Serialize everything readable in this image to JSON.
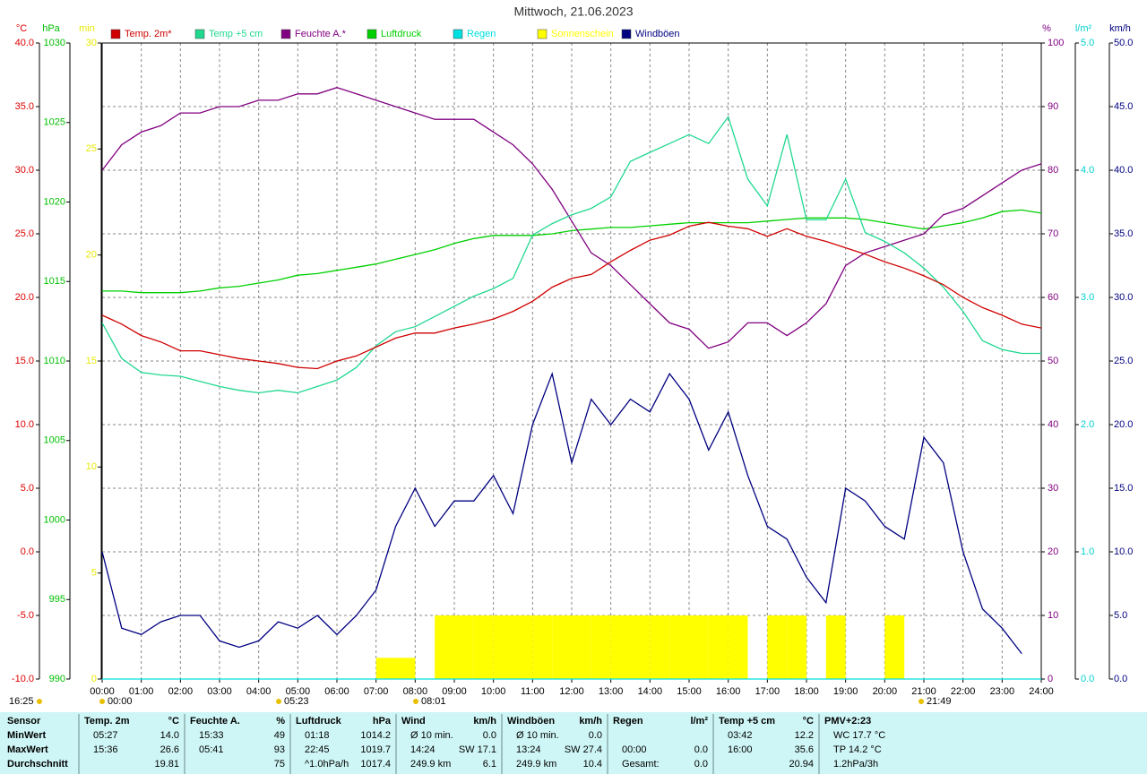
{
  "chart_data": {
    "type": "line",
    "title": "Mittwoch, 21.06.2023",
    "xlim": [
      0,
      24
    ],
    "xticks": [
      {
        "value": 0,
        "label": "00:00"
      },
      {
        "value": 1,
        "label": "01:00"
      },
      {
        "value": 2,
        "label": "02:00"
      },
      {
        "value": 3,
        "label": "03:00"
      },
      {
        "value": 4,
        "label": "04:00"
      },
      {
        "value": 5,
        "label": "05:00"
      },
      {
        "value": 6,
        "label": "06:00"
      },
      {
        "value": 7,
        "label": "07:00"
      },
      {
        "value": 8,
        "label": "08:00"
      },
      {
        "value": 9,
        "label": "09:00"
      },
      {
        "value": 10,
        "label": "10:00"
      },
      {
        "value": 11,
        "label": "11:00"
      },
      {
        "value": 12,
        "label": "12:00"
      },
      {
        "value": 13,
        "label": "13:00"
      },
      {
        "value": 14,
        "label": "14:00"
      },
      {
        "value": 15,
        "label": "15:00"
      },
      {
        "value": 16,
        "label": "16:00"
      },
      {
        "value": 17,
        "label": "17:00"
      },
      {
        "value": 18,
        "label": "18:00"
      },
      {
        "value": 19,
        "label": "19:00"
      },
      {
        "value": 20,
        "label": "20:00"
      },
      {
        "value": 21,
        "label": "21:00"
      },
      {
        "value": 22,
        "label": "22:00"
      },
      {
        "value": 23,
        "label": "23:00"
      },
      {
        "value": 24,
        "label": "24:00"
      }
    ],
    "grid": true,
    "axes": [
      {
        "unit": "°C",
        "color": "#e00000",
        "lim": [
          -10,
          40
        ],
        "ticks": [
          {
            "value": -10,
            "label": "-10.0"
          },
          {
            "value": -5,
            "label": "-5.0"
          },
          {
            "value": 0,
            "label": "0.0"
          },
          {
            "value": 5,
            "label": "5.0"
          },
          {
            "value": 10,
            "label": "10.0"
          },
          {
            "value": 15,
            "label": "15.0"
          },
          {
            "value": 20,
            "label": "20.0"
          },
          {
            "value": 25,
            "label": "25.0"
          },
          {
            "value": 30,
            "label": "30.0"
          },
          {
            "value": 35,
            "label": "35.0"
          },
          {
            "value": 40,
            "label": "40.0"
          }
        ]
      },
      {
        "unit": "hPa",
        "color": "#00c000",
        "lim": [
          990,
          1030
        ],
        "ticks": [
          990,
          995,
          1000,
          1005,
          1010,
          1015,
          1020,
          1025,
          1030
        ]
      },
      {
        "unit": "min",
        "color": "#e8e800",
        "lim": [
          0,
          30
        ],
        "ticks": [
          0,
          5,
          10,
          15,
          20,
          25,
          30
        ]
      },
      {
        "unit": "%",
        "color": "#800080",
        "lim": [
          0,
          100
        ],
        "ticks": [
          0,
          10,
          20,
          30,
          40,
          50,
          60,
          70,
          80,
          90,
          100
        ]
      },
      {
        "unit": "l/m²",
        "color": "#00d0d0",
        "lim": [
          0,
          5
        ],
        "ticks": [
          {
            "value": 0,
            "label": "0.0"
          },
          {
            "value": 1,
            "label": "1.0"
          },
          {
            "value": 2,
            "label": "2.0"
          },
          {
            "value": 3,
            "label": "3.0"
          },
          {
            "value": 4,
            "label": "4.0"
          },
          {
            "value": 5,
            "label": "5.0"
          }
        ]
      },
      {
        "unit": "km/h",
        "color": "#000080",
        "lim": [
          0,
          50
        ],
        "ticks": [
          {
            "value": 0,
            "label": "0.0"
          },
          {
            "value": 5,
            "label": "5.0"
          },
          {
            "value": 10,
            "label": "10.0"
          },
          {
            "value": 15,
            "label": "15.0"
          },
          {
            "value": 20,
            "label": "20.0"
          },
          {
            "value": 25,
            "label": "25.0"
          },
          {
            "value": 30,
            "label": "30.0"
          },
          {
            "value": 35,
            "label": "35.0"
          },
          {
            "value": 40,
            "label": "40.0"
          },
          {
            "value": 45,
            "label": "45.0"
          },
          {
            "value": 50,
            "label": "50.0"
          }
        ]
      }
    ],
    "x": [
      0,
      0.5,
      1,
      1.5,
      2,
      2.5,
      3,
      3.5,
      4,
      4.5,
      5,
      5.5,
      6,
      6.5,
      7,
      7.5,
      8,
      8.5,
      9,
      9.5,
      10,
      10.5,
      11,
      11.5,
      12,
      12.5,
      13,
      13.5,
      14,
      14.5,
      15,
      15.5,
      16,
      16.5,
      17,
      17.5,
      18,
      18.5,
      19,
      19.5,
      20,
      20.5,
      21,
      21.5,
      22,
      22.5,
      23,
      23.5,
      24
    ],
    "series": [
      {
        "name": "Temp. 2m*",
        "color": "#d00000",
        "axis": 0,
        "type": "line",
        "values": [
          18.6,
          17.9,
          17.0,
          16.5,
          15.8,
          15.8,
          15.5,
          15.2,
          15.0,
          14.8,
          14.5,
          14.4,
          15.0,
          15.4,
          16.1,
          16.8,
          17.2,
          17.2,
          17.6,
          17.9,
          18.3,
          18.9,
          19.7,
          20.8,
          21.5,
          21.8,
          22.8,
          23.7,
          24.5,
          24.9,
          25.6,
          25.9,
          25.6,
          25.4,
          24.8,
          25.4,
          24.8,
          24.4,
          23.9,
          23.4,
          22.8,
          22.3,
          21.7,
          21.0,
          20.0,
          19.2,
          18.6,
          17.9,
          17.6
        ]
      },
      {
        "name": "Temp +5 cm",
        "color": "#20d890",
        "axis": 0,
        "type": "line",
        "values": [
          18.0,
          15.2,
          14.1,
          13.9,
          13.8,
          13.4,
          13.0,
          12.7,
          12.5,
          12.7,
          12.5,
          13.0,
          13.5,
          14.5,
          16.2,
          17.3,
          17.7,
          18.5,
          19.3,
          20.1,
          20.7,
          21.5,
          24.9,
          25.8,
          26.5,
          27.0,
          27.9,
          30.7,
          31.4,
          32.1,
          32.8,
          32.1,
          34.2,
          29.3,
          27.2,
          32.8,
          26.1,
          26.1,
          29.3,
          25.1,
          24.4,
          23.5,
          22.3,
          20.8,
          18.9,
          16.6,
          15.9,
          15.6,
          15.6
        ]
      },
      {
        "name": "Feuchte A.*",
        "color": "#800080",
        "axis": 3,
        "type": "line",
        "values": [
          80,
          84,
          86,
          87,
          89,
          89,
          90,
          90,
          91,
          91,
          92,
          92,
          93,
          92,
          91,
          90,
          89,
          88,
          88,
          88,
          86,
          84,
          81,
          77,
          72,
          67,
          65,
          62,
          59,
          56,
          55,
          52,
          53,
          56,
          56,
          54,
          56,
          59,
          65,
          67,
          68,
          69,
          70,
          73,
          74,
          76,
          78,
          80,
          81
        ]
      },
      {
        "name": "Luftdruck",
        "color": "#00d000",
        "axis": 1,
        "type": "line",
        "values": [
          1014.4,
          1014.4,
          1014.3,
          1014.3,
          1014.3,
          1014.4,
          1014.6,
          1014.7,
          1014.9,
          1015.1,
          1015.4,
          1015.5,
          1015.7,
          1015.9,
          1016.1,
          1016.4,
          1016.7,
          1017.0,
          1017.4,
          1017.7,
          1017.9,
          1017.9,
          1017.9,
          1018.0,
          1018.2,
          1018.3,
          1018.4,
          1018.4,
          1018.5,
          1018.6,
          1018.7,
          1018.7,
          1018.7,
          1018.7,
          1018.8,
          1018.9,
          1019.0,
          1019.0,
          1019.0,
          1018.9,
          1018.7,
          1018.5,
          1018.3,
          1018.5,
          1018.7,
          1019.0,
          1019.4,
          1019.5,
          1019.3
        ]
      },
      {
        "name": "Regen",
        "color": "#00e0e0",
        "axis": 4,
        "type": "line",
        "values": [
          0,
          0,
          0,
          0,
          0,
          0,
          0,
          0,
          0,
          0,
          0,
          0,
          0,
          0,
          0,
          0,
          0,
          0,
          0,
          0,
          0,
          0,
          0,
          0,
          0,
          0,
          0,
          0,
          0,
          0,
          0,
          0,
          0,
          0,
          0,
          0,
          0,
          0,
          0,
          0,
          0,
          0,
          0,
          0,
          0,
          0,
          0,
          0,
          0
        ]
      },
      {
        "name": "Sonnenschein",
        "color": "#ffff00",
        "axis": 2,
        "type": "bar",
        "values": [
          0,
          0,
          0,
          0,
          0,
          0,
          0,
          0,
          0,
          0,
          0,
          0,
          0,
          0,
          1,
          1,
          0,
          3,
          3,
          3,
          3,
          3,
          3,
          3,
          3,
          3,
          3,
          3,
          3,
          3,
          3,
          3,
          3,
          0,
          3,
          3,
          0,
          3,
          0,
          0,
          3,
          0,
          0,
          0,
          0,
          0,
          0,
          0,
          0
        ]
      },
      {
        "name": "Windböen",
        "color": "#000080",
        "axis": 5,
        "type": "line",
        "values": [
          10,
          4,
          3.5,
          4.5,
          5,
          5,
          3,
          2.5,
          3,
          4.5,
          4,
          5,
          3.5,
          5,
          7,
          12,
          15,
          12,
          14,
          14,
          16,
          13,
          20,
          24,
          17,
          22,
          20,
          22,
          21,
          24,
          22,
          18,
          21,
          16,
          12,
          11,
          8,
          6,
          15,
          14,
          12,
          11,
          19,
          17,
          10,
          5.5,
          4,
          2,
          null
        ]
      }
    ],
    "annotations": [
      "16:25",
      "00:00",
      "05:23",
      "08:01",
      "21:49"
    ]
  },
  "table": {
    "first_header": "Sensor",
    "row_labels": [
      "MinWert",
      "MaxWert",
      "Durchschnitt"
    ],
    "sections": [
      {
        "name": "Temp. 2m",
        "unit": "°C",
        "rows": [
          [
            "05:27",
            "14.0"
          ],
          [
            "15:36",
            "26.6"
          ],
          [
            "19.81"
          ]
        ]
      },
      {
        "name": "Feuchte A.",
        "unit": "%",
        "rows": [
          [
            "15:33",
            "49"
          ],
          [
            "05:41",
            "93"
          ],
          [
            "75"
          ]
        ]
      },
      {
        "name": "Luftdruck",
        "unit": "hPa",
        "rows": [
          [
            "01:18",
            "1014.2"
          ],
          [
            "22:45",
            "1019.7"
          ],
          [
            "^1.0hPa/h",
            "1017.4"
          ]
        ]
      },
      {
        "name": "Wind",
        "unit": "km/h",
        "rows": [
          [
            "Ø 10 min.",
            "0.0"
          ],
          [
            "14:24",
            "SW 17.1"
          ],
          [
            "249.9 km",
            "6.1"
          ]
        ]
      },
      {
        "name": "Windböen",
        "unit": "km/h",
        "rows": [
          [
            "Ø 10 min.",
            "0.0"
          ],
          [
            "13:24",
            "SW 27.4"
          ],
          [
            "249.9 km",
            "10.4"
          ]
        ]
      },
      {
        "name": "Regen",
        "unit": "l/m²",
        "rows": [
          [],
          [
            "00:00",
            "0.0"
          ],
          [
            "Gesamt:",
            "0.0"
          ]
        ]
      },
      {
        "name": "Temp +5 cm",
        "unit": "°C",
        "rows": [
          [
            "03:42",
            "12.2"
          ],
          [
            "16:00",
            "35.6"
          ],
          [
            "20.94"
          ]
        ]
      },
      {
        "name": "PMV+2:23",
        "rows": [
          [
            "WC 17.7 °C"
          ],
          [
            "TP 14.2 °C"
          ],
          [
            "1.2hPa/3h"
          ]
        ]
      }
    ]
  }
}
